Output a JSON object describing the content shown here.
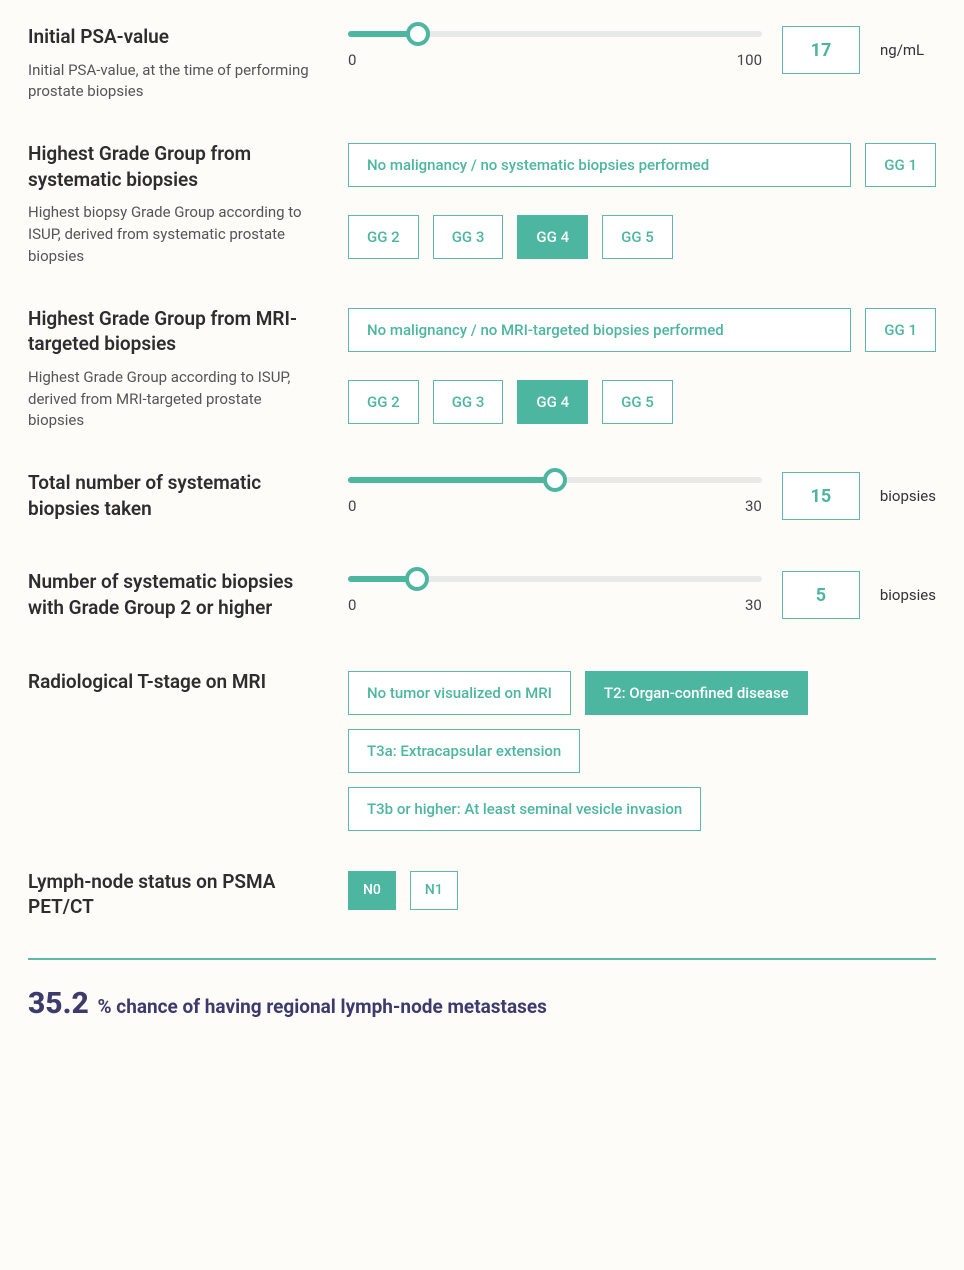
{
  "colors": {
    "accent": "#4db6a1",
    "accent_border": "#5cbaa6",
    "text_dark": "#2d2d2d",
    "result": "#3d3a6d",
    "divider": "#5cbaa6",
    "track": "#e9e9e9"
  },
  "psa": {
    "title": "Initial PSA-value",
    "desc": "Initial PSA-value, at the time of performing prostate biopsies",
    "min": "0",
    "max": "100",
    "value": "17",
    "unit": "ng/mL",
    "percent": 17
  },
  "sys_grade": {
    "title": "Highest Grade Group from systematic biopsies",
    "desc": "Highest biopsy Grade Group according to ISUP, derived from systematic prostate biopsies",
    "options_row1": [
      "No malignancy / no systematic biopsies performed",
      "GG 1"
    ],
    "options_row2": [
      "GG 2",
      "GG 3",
      "GG 4",
      "GG 5"
    ],
    "selected": "GG 4"
  },
  "mri_grade": {
    "title": "Highest Grade Group from MRI-targeted biopsies",
    "desc": "Highest Grade Group according to ISUP, derived from MRI-targeted prostate biopsies",
    "options_row1": [
      "No malignancy / no MRI-targeted biopsies performed",
      "GG 1"
    ],
    "options_row2": [
      "GG 2",
      "GG 3",
      "GG 4",
      "GG 5"
    ],
    "selected": "GG 4"
  },
  "total_biopsies": {
    "title": "Total number of systematic biopsies taken",
    "min": "0",
    "max": "30",
    "value": "15",
    "unit": "biopsies",
    "percent": 50
  },
  "gg2_biopsies": {
    "title": "Number of systematic biopsies with Grade Group 2 or higher",
    "min": "0",
    "max": "30",
    "value": "5",
    "unit": "biopsies",
    "percent": 16.7
  },
  "t_stage": {
    "title": "Radiological T-stage on MRI",
    "options": [
      "No tumor visualized on MRI",
      "T2: Organ-confined disease",
      "T3a: Extracapsular extension",
      "T3b or higher: At least seminal vesicle invasion"
    ],
    "selected": "T2: Organ-confined disease"
  },
  "n_status": {
    "title": "Lymph-node status on PSMA PET/CT",
    "options": [
      "N0",
      "N1"
    ],
    "selected": "N0"
  },
  "result": {
    "percent": "35.2",
    "text": "% chance of having regional lymph-node metastases"
  }
}
